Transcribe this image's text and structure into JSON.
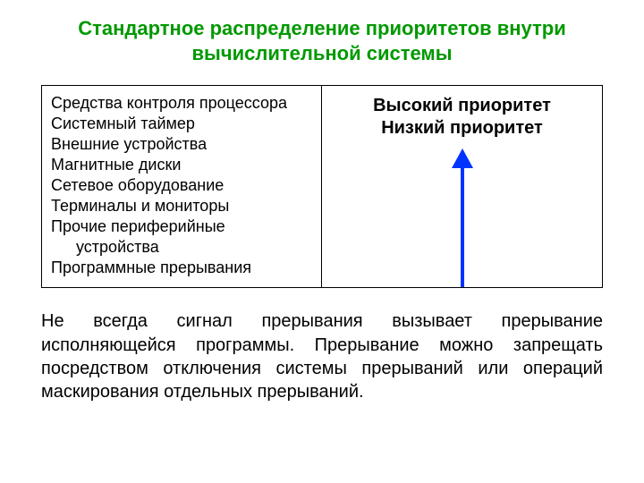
{
  "title": "Стандартное распределение приоритетов внутри вычислительной системы",
  "left_items": [
    " Средства контроля процессора",
    "Системный таймер",
    "Внешние устройства",
    "Магнитные диски",
    "Сетевое оборудование",
    "Терминалы и мониторы",
    "Прочие периферийные устройства",
    "Программные прерывания"
  ],
  "right_labels": {
    "high": "Высокий приоритет",
    "low": "Низкий приоритет"
  },
  "arrow": {
    "color": "#0033ff",
    "width": 30,
    "height": 155,
    "stroke_width": 4,
    "head_w": 24,
    "head_h": 22
  },
  "paragraph": "Не всегда сигнал прерывания вызывает прерывание исполняющейся программы. Прерывание можно запрещать посредством отключения системы прерываний или операций маскирования отдельных прерываний.",
  "colors": {
    "title": "#009900",
    "text": "#000000",
    "border": "#000000",
    "background": "#ffffff"
  },
  "fonts": {
    "title_size": 22,
    "body_size": 20,
    "list_size": 18,
    "priority_size": 20,
    "family": "Arial"
  }
}
